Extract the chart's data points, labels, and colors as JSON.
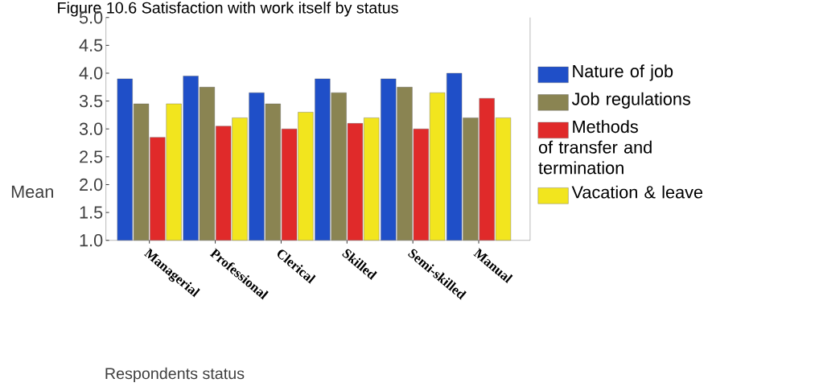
{
  "chart_data": {
    "type": "bar",
    "title": "Figure 10.6 Satisfaction with work itself by status",
    "xlabel": "Respondents status",
    "ylabel": "Mean",
    "categories": [
      "Managerial",
      "Professional",
      "Clerical",
      "Skilled",
      "Semi-skilled",
      "Manual"
    ],
    "series": [
      {
        "name": "Nature of job",
        "color": "#1f4fc8",
        "values": [
          3.9,
          3.95,
          3.65,
          3.9,
          3.9,
          4.0
        ]
      },
      {
        "name": "Job regulations",
        "color": "#8a8452",
        "values": [
          3.45,
          3.75,
          3.45,
          3.65,
          3.75,
          3.2
        ]
      },
      {
        "name": "Methods of transfer and termination",
        "color": "#e02a2a",
        "values": [
          2.85,
          3.05,
          3.0,
          3.1,
          3.0,
          3.55
        ]
      },
      {
        "name": "Vacation & leave",
        "color": "#f2e51e",
        "values": [
          3.45,
          3.2,
          3.3,
          3.2,
          3.65,
          3.2
        ]
      }
    ],
    "ylim": [
      1.0,
      5.0
    ],
    "yticks": [
      {
        "value": 1.0,
        "label": "1.0"
      },
      {
        "value": 1.5,
        "label": "1.5"
      },
      {
        "value": 2.0,
        "label": "2.0"
      },
      {
        "value": 2.5,
        "label": "2.5"
      },
      {
        "value": 3.0,
        "label": "3.0"
      },
      {
        "value": 3.5,
        "label": "3.5"
      },
      {
        "value": 4.0,
        "label": "4.0"
      },
      {
        "value": 4.5,
        "label": "4.5"
      },
      {
        "value": 5.0,
        "label": "5.0"
      }
    ],
    "grid": false,
    "legend": "right"
  }
}
